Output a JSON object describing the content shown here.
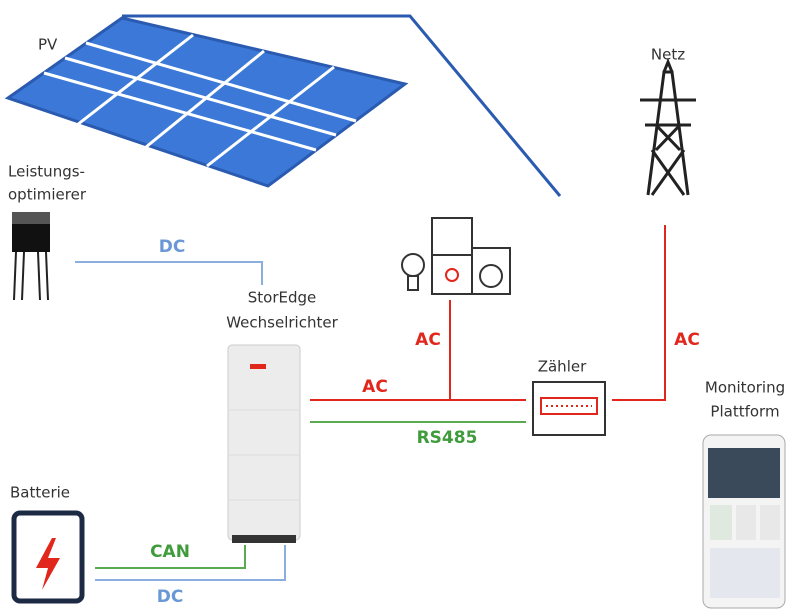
{
  "pv": "PV",
  "optimizer": [
    "Leistungs-",
    "optimierer"
  ],
  "dc_top": "DC",
  "inverter": [
    "StorEdge",
    "Wechselrichter"
  ],
  "ac_loads": "AC",
  "ac_inverter": "AC",
  "meter": "Zähler",
  "ac_grid": "AC",
  "grid": "Netz",
  "rs485": "RS485",
  "monitoring": [
    "Monitoring",
    "Plattform"
  ],
  "battery": "Batterie",
  "can": "CAN",
  "dc_bottom": "DC"
}
